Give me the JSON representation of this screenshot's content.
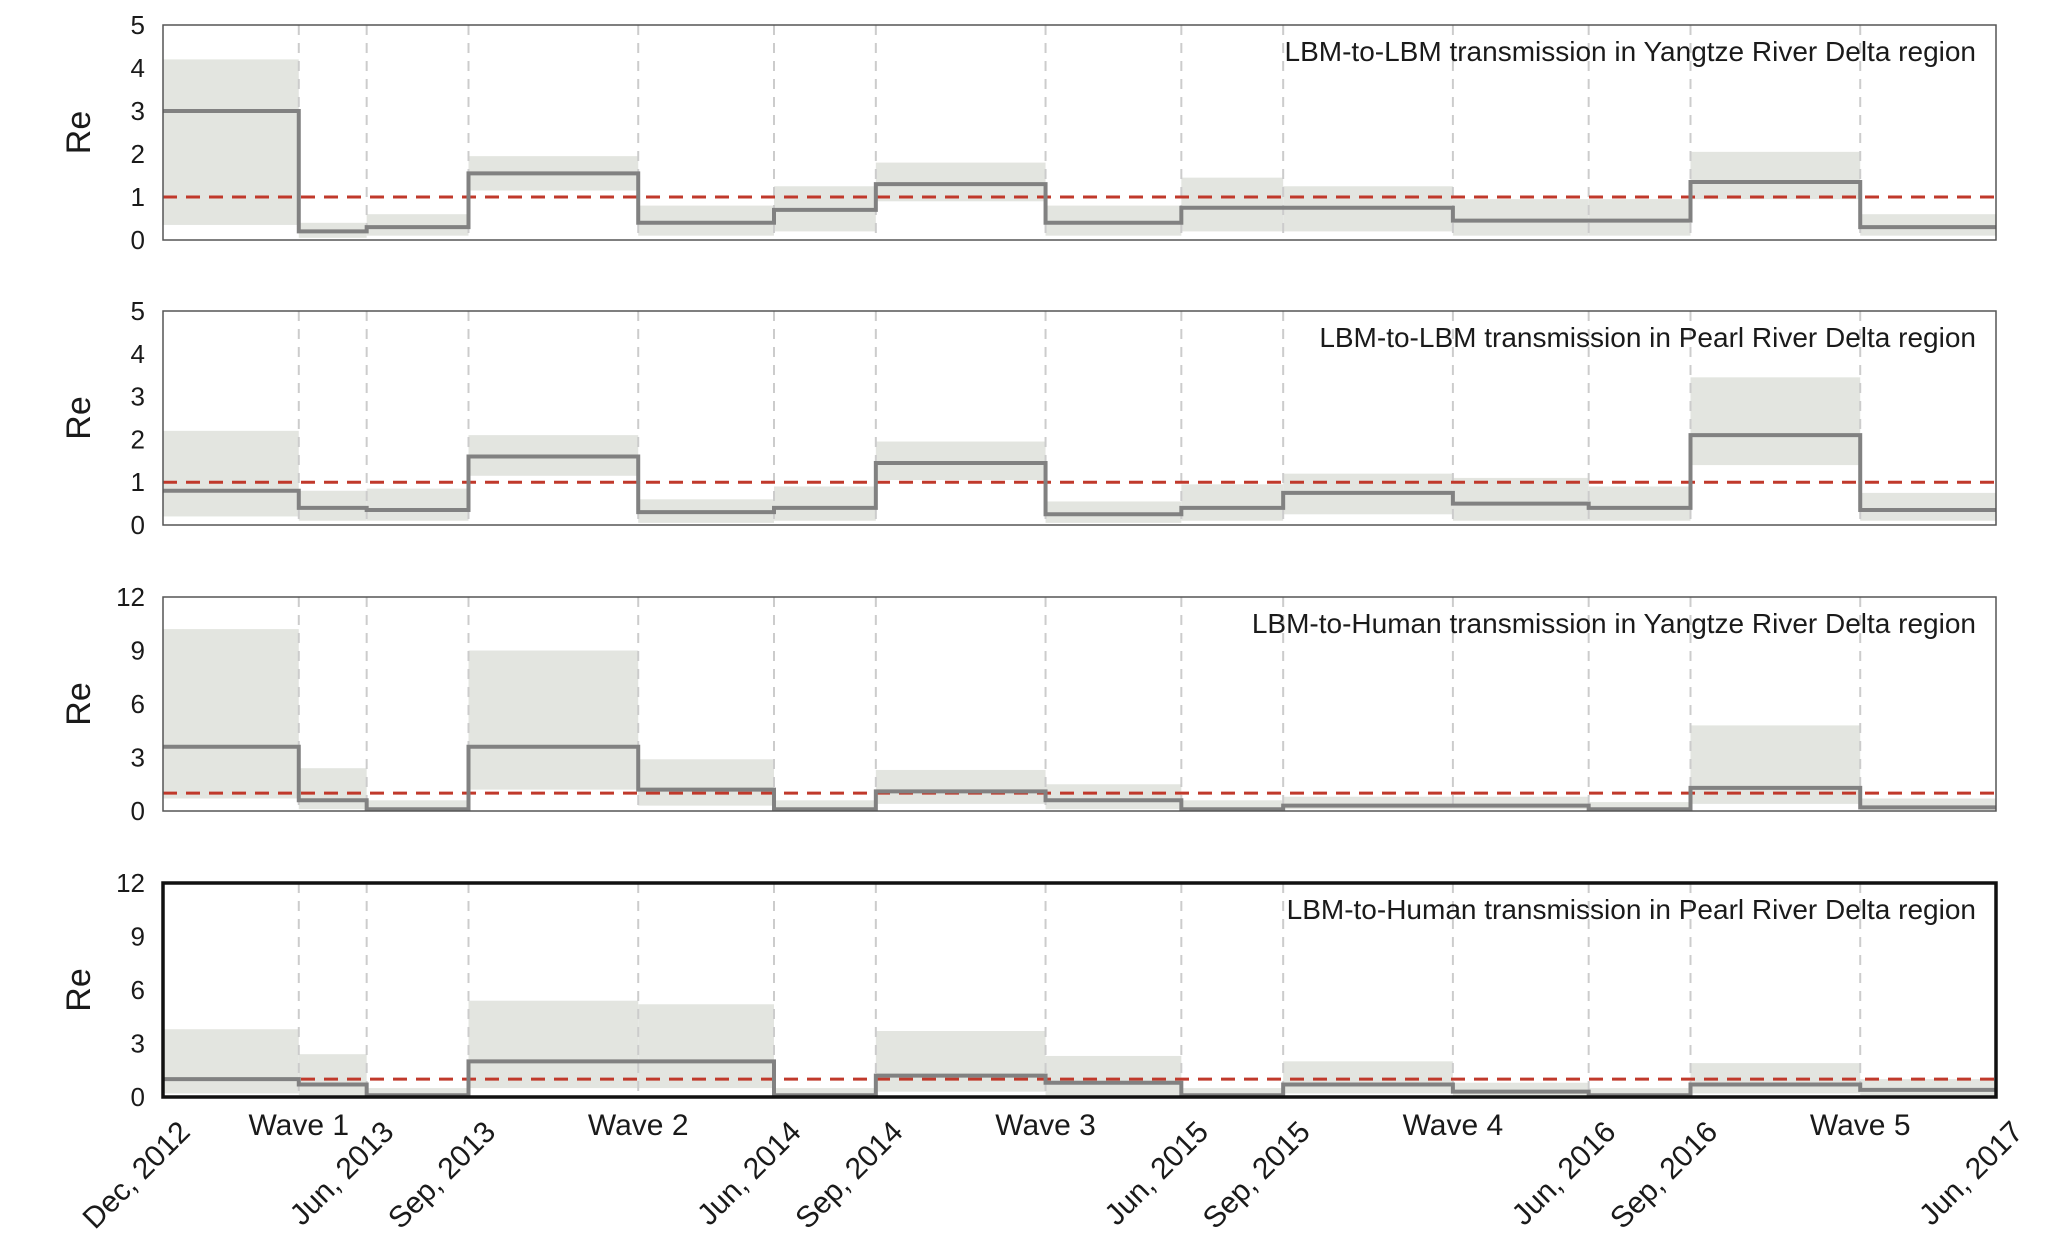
{
  "colors": {
    "band": "#e3e5e0",
    "line": "#818181",
    "threshold": "#c0392b",
    "grid": "#cccccc",
    "frame": "#555555",
    "frame_emph": "#111111"
  },
  "chart_data": {
    "type": "step-area",
    "x_ticks": [
      "Dec, 2012",
      "Jun, 2013",
      "Sep, 2013",
      "Jun, 2014",
      "Sep, 2014",
      "Jun, 2015",
      "Sep, 2015",
      "Jun, 2016",
      "Sep, 2016",
      "Jun, 2017"
    ],
    "boundaries": [
      "2012-12",
      "2013-04",
      "2013-06",
      "2013-09",
      "2014-02",
      "2014-06",
      "2014-09",
      "2015-02",
      "2015-06",
      "2015-09",
      "2016-02",
      "2016-06",
      "2016-09",
      "2017-02",
      "2017-06"
    ],
    "waves": [
      {
        "label": "Wave 1",
        "at": "2013-04"
      },
      {
        "label": "Wave 2",
        "at": "2014-02"
      },
      {
        "label": "Wave 3",
        "at": "2015-02"
      },
      {
        "label": "Wave 4",
        "at": "2016-02"
      },
      {
        "label": "Wave 5",
        "at": "2017-02"
      }
    ],
    "threshold": 1,
    "panels": [
      {
        "title": "LBM-to-LBM transmission in Yangtze River Delta region",
        "ylabel": "Re",
        "ylim": [
          0,
          5
        ],
        "yticks": [
          0,
          1,
          2,
          3,
          4,
          5
        ],
        "emphasized": false,
        "values": [
          3.0,
          0.2,
          0.3,
          1.55,
          0.4,
          0.7,
          1.3,
          0.4,
          0.75,
          0.75,
          0.45,
          0.45,
          1.35,
          0.3
        ],
        "lower": [
          0.35,
          0.05,
          0.1,
          1.15,
          0.1,
          0.2,
          0.9,
          0.1,
          0.2,
          0.2,
          0.1,
          0.1,
          0.95,
          0.1
        ],
        "upper": [
          4.2,
          0.4,
          0.6,
          1.95,
          0.8,
          1.25,
          1.8,
          0.8,
          1.45,
          1.25,
          0.95,
          0.95,
          2.05,
          0.6
        ]
      },
      {
        "title": "LBM-to-LBM transmission in Pearl River Delta region",
        "ylabel": "Re",
        "ylim": [
          0,
          5
        ],
        "yticks": [
          0,
          1,
          2,
          3,
          4,
          5
        ],
        "emphasized": false,
        "values": [
          0.8,
          0.4,
          0.35,
          1.6,
          0.3,
          0.4,
          1.45,
          0.25,
          0.4,
          0.75,
          0.5,
          0.4,
          2.1,
          0.35
        ],
        "lower": [
          0.2,
          0.1,
          0.1,
          1.15,
          0.05,
          0.1,
          1.05,
          0.05,
          0.1,
          0.25,
          0.1,
          0.1,
          1.4,
          0.1
        ],
        "upper": [
          2.2,
          0.8,
          0.85,
          2.1,
          0.6,
          0.9,
          1.95,
          0.55,
          0.95,
          1.2,
          1.1,
          0.9,
          3.45,
          0.75
        ]
      },
      {
        "title": "LBM-to-Human transmission in Yangtze River Delta region",
        "ylabel": "Re",
        "ylim": [
          0,
          12
        ],
        "yticks": [
          0,
          3,
          6,
          9,
          12
        ],
        "emphasized": false,
        "values": [
          3.6,
          0.6,
          0.1,
          3.6,
          1.2,
          0.1,
          1.1,
          0.6,
          0.1,
          0.3,
          0.3,
          0.1,
          1.3,
          0.2
        ],
        "lower": [
          0.7,
          0.1,
          0.0,
          1.2,
          0.3,
          0.0,
          0.4,
          0.1,
          0.0,
          0.1,
          0.1,
          0.0,
          0.4,
          0.05
        ],
        "upper": [
          10.2,
          2.4,
          0.6,
          9.0,
          2.9,
          0.6,
          2.3,
          1.5,
          0.6,
          0.8,
          0.8,
          0.5,
          4.8,
          0.7
        ]
      },
      {
        "title": "LBM-to-Human transmission in Pearl River Delta region",
        "ylabel": "Re",
        "ylim": [
          0,
          12
        ],
        "yticks": [
          0,
          3,
          6,
          9,
          12
        ],
        "emphasized": true,
        "values": [
          1.0,
          0.7,
          0.1,
          2.0,
          2.0,
          0.1,
          1.2,
          0.8,
          0.1,
          0.7,
          0.3,
          0.1,
          0.7,
          0.4
        ],
        "lower": [
          0.2,
          0.1,
          0.0,
          0.5,
          0.5,
          0.0,
          0.3,
          0.1,
          0.0,
          0.2,
          0.05,
          0.0,
          0.2,
          0.1
        ],
        "upper": [
          3.8,
          2.4,
          0.5,
          5.4,
          5.2,
          0.5,
          3.7,
          2.3,
          0.5,
          2.0,
          0.8,
          0.5,
          1.9,
          1.0
        ]
      }
    ]
  }
}
